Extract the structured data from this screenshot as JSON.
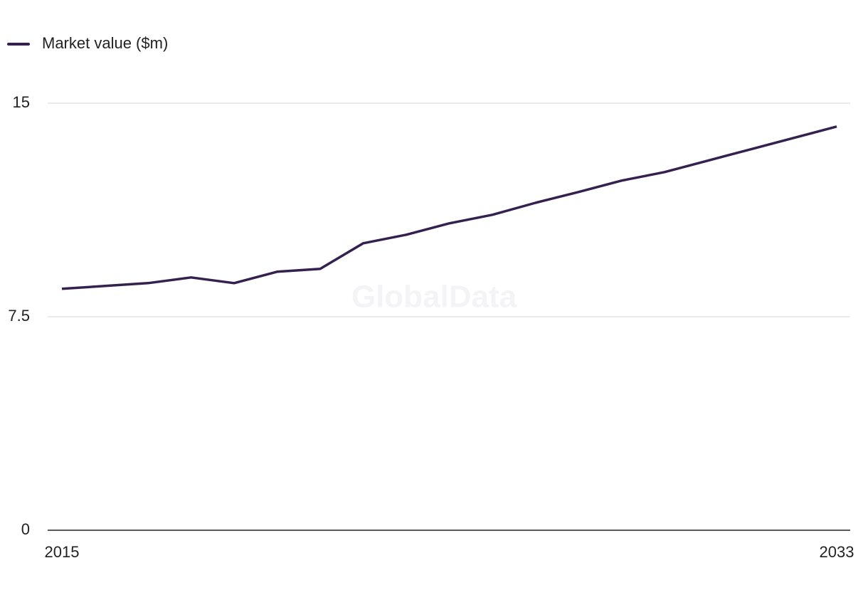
{
  "chart_data": {
    "type": "line",
    "watermark": "GlobalData",
    "x": [
      2015,
      2016,
      2017,
      2018,
      2019,
      2020,
      2021,
      2022,
      2023,
      2024,
      2025,
      2026,
      2027,
      2028,
      2029,
      2030,
      2031,
      2032,
      2033
    ],
    "series": [
      {
        "name": "Market value ($m)",
        "color": "#35214f",
        "values": [
          8.48,
          8.58,
          8.68,
          8.88,
          8.68,
          9.08,
          9.18,
          10.08,
          10.38,
          10.78,
          11.08,
          11.5,
          11.88,
          12.28,
          12.58,
          12.98,
          13.38,
          13.78,
          14.18
        ]
      }
    ],
    "xlim": [
      2015,
      2033
    ],
    "xticks": [
      2015,
      2033
    ],
    "ylim": [
      0,
      15
    ],
    "yticks": [
      0,
      7.5,
      15
    ],
    "grid": true,
    "legend": "top-left"
  }
}
